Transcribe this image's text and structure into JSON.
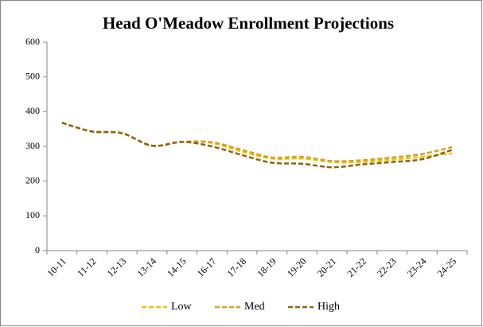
{
  "chart_data": {
    "type": "line",
    "title": "Head O'Meadow Enrollment Projections",
    "categories": [
      "10-11",
      "11-12",
      "12-13",
      "13-14",
      "14-15",
      "16-17",
      "17-18",
      "18-19",
      "19-20",
      "20-21",
      "21-22",
      "22-23",
      "23-24",
      "24-25"
    ],
    "series": [
      {
        "name": "Low",
        "color": "#f2c200",
        "values": [
          368,
          343,
          338,
          302,
          313,
          310,
          285,
          265,
          265,
          255,
          255,
          262,
          270,
          280
        ]
      },
      {
        "name": "Med",
        "color": "#d4a21c",
        "values": [
          368,
          343,
          338,
          302,
          313,
          312,
          290,
          268,
          270,
          258,
          260,
          268,
          278,
          298
        ]
      },
      {
        "name": "High",
        "color": "#8a6412",
        "values": [
          368,
          343,
          338,
          302,
          313,
          300,
          275,
          253,
          250,
          240,
          248,
          255,
          263,
          290
        ]
      }
    ],
    "ylim": [
      0,
      600
    ],
    "yticks": [
      0,
      100,
      200,
      300,
      400,
      500,
      600
    ],
    "grid": false,
    "legend": "bottom",
    "line_style": "dashed",
    "smooth": true
  }
}
